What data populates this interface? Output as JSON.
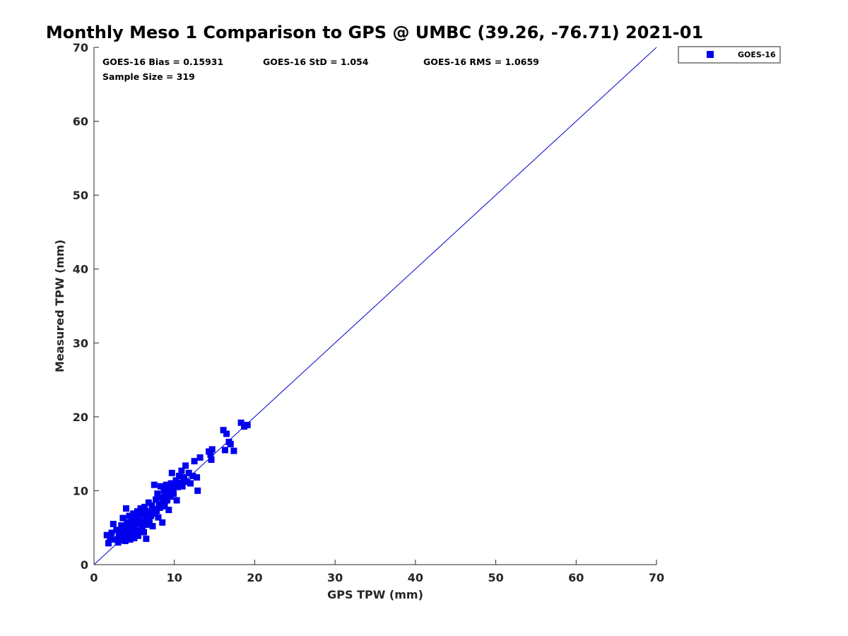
{
  "chart_data": {
    "type": "scatter",
    "title": "Monthly Meso 1 Comparison to GPS @ UMBC (39.26, -76.71) 2021-01",
    "xlabel": "GPS TPW (mm)",
    "ylabel": "Measured TPW (mm)",
    "xlim": [
      0,
      70
    ],
    "ylim": [
      0,
      70
    ],
    "xticks": [
      "0",
      "10",
      "20",
      "30",
      "40",
      "50",
      "60",
      "70"
    ],
    "yticks": [
      "0",
      "10",
      "20",
      "30",
      "40",
      "50",
      "60",
      "70"
    ],
    "grid": false,
    "legend_position": "outside-top-right",
    "stats": {
      "bias": "GOES-16 Bias = 0.15931",
      "std": "GOES-16 StD = 1.054",
      "rms": "GOES-16 RMS = 1.0659",
      "sample": "Sample Size = 319"
    },
    "reference_line": {
      "x": [
        0,
        70
      ],
      "y": [
        0,
        70
      ],
      "color": "#0000cc"
    },
    "series": [
      {
        "name": "GOES-16",
        "color": "#0000ee",
        "marker": "square",
        "points": [
          [
            1.6,
            4.0
          ],
          [
            1.8,
            2.9
          ],
          [
            2.0,
            3.6
          ],
          [
            2.2,
            4.3
          ],
          [
            2.4,
            5.5
          ],
          [
            2.6,
            3.4
          ],
          [
            2.8,
            4.7
          ],
          [
            3.0,
            3.0
          ],
          [
            3.1,
            3.9
          ],
          [
            3.2,
            4.6
          ],
          [
            3.3,
            3.3
          ],
          [
            3.4,
            5.3
          ],
          [
            3.5,
            4.1
          ],
          [
            3.6,
            6.3
          ],
          [
            3.7,
            3.6
          ],
          [
            3.8,
            4.9
          ],
          [
            3.9,
            3.2
          ],
          [
            4.0,
            7.6
          ],
          [
            4.0,
            4.4
          ],
          [
            4.1,
            5.7
          ],
          [
            4.2,
            3.8
          ],
          [
            4.3,
            5.1
          ],
          [
            4.4,
            6.6
          ],
          [
            4.5,
            3.4
          ],
          [
            4.6,
            4.6
          ],
          [
            4.7,
            5.9
          ],
          [
            4.8,
            4.0
          ],
          [
            4.9,
            6.9
          ],
          [
            5.0,
            3.6
          ],
          [
            5.0,
            5.2
          ],
          [
            5.1,
            4.8
          ],
          [
            5.2,
            6.2
          ],
          [
            5.3,
            4.2
          ],
          [
            5.4,
            7.2
          ],
          [
            5.5,
            5.5
          ],
          [
            5.5,
            3.9
          ],
          [
            5.6,
            6.5
          ],
          [
            5.7,
            4.6
          ],
          [
            5.8,
            7.6
          ],
          [
            5.9,
            5.8
          ],
          [
            6.0,
            5.0
          ],
          [
            6.1,
            6.9
          ],
          [
            6.2,
            4.4
          ],
          [
            6.3,
            7.8
          ],
          [
            6.4,
            6.1
          ],
          [
            6.5,
            3.5
          ],
          [
            6.5,
            5.4
          ],
          [
            6.6,
            7.2
          ],
          [
            6.7,
            6.4
          ],
          [
            6.8,
            8.4
          ],
          [
            6.9,
            5.8
          ],
          [
            7.0,
            7.0
          ],
          [
            7.1,
            6.6
          ],
          [
            7.2,
            8.0
          ],
          [
            7.3,
            5.2
          ],
          [
            7.4,
            7.5
          ],
          [
            7.5,
            10.8
          ],
          [
            7.6,
            6.9
          ],
          [
            7.7,
            8.8
          ],
          [
            7.8,
            7.3
          ],
          [
            7.9,
            9.6
          ],
          [
            8.0,
            6.4
          ],
          [
            8.1,
            8.2
          ],
          [
            8.2,
            7.7
          ],
          [
            8.3,
            10.6
          ],
          [
            8.4,
            9.1
          ],
          [
            8.5,
            5.7
          ],
          [
            8.6,
            8.6
          ],
          [
            8.7,
            10.0
          ],
          [
            8.8,
            7.9
          ],
          [
            8.9,
            9.4
          ],
          [
            9.0,
            10.8
          ],
          [
            9.1,
            8.7
          ],
          [
            9.2,
            9.9
          ],
          [
            9.3,
            7.4
          ],
          [
            9.4,
            10.3
          ],
          [
            9.5,
            9.2
          ],
          [
            9.6,
            11.0
          ],
          [
            9.7,
            12.4
          ],
          [
            9.8,
            10.1
          ],
          [
            9.9,
            9.6
          ],
          [
            10.0,
            10.8
          ],
          [
            10.2,
            11.4
          ],
          [
            10.3,
            8.7
          ],
          [
            10.4,
            10.5
          ],
          [
            10.6,
            12.0
          ],
          [
            10.8,
            11.1
          ],
          [
            10.9,
            12.7
          ],
          [
            11.0,
            10.6
          ],
          [
            11.2,
            11.8
          ],
          [
            11.4,
            13.4
          ],
          [
            11.6,
            11.2
          ],
          [
            11.8,
            12.4
          ],
          [
            12.0,
            11.0
          ],
          [
            12.3,
            12.0
          ],
          [
            12.5,
            14.0
          ],
          [
            12.8,
            11.8
          ],
          [
            12.9,
            10.0
          ],
          [
            13.2,
            14.5
          ],
          [
            14.3,
            15.3
          ],
          [
            14.5,
            14.9
          ],
          [
            14.6,
            14.2
          ],
          [
            14.7,
            15.6
          ],
          [
            16.1,
            18.2
          ],
          [
            16.3,
            15.5
          ],
          [
            16.5,
            17.7
          ],
          [
            16.8,
            16.6
          ],
          [
            17.0,
            16.3
          ],
          [
            17.4,
            15.4
          ],
          [
            18.3,
            19.2
          ],
          [
            18.7,
            18.7
          ],
          [
            19.1,
            18.9
          ]
        ]
      }
    ]
  }
}
